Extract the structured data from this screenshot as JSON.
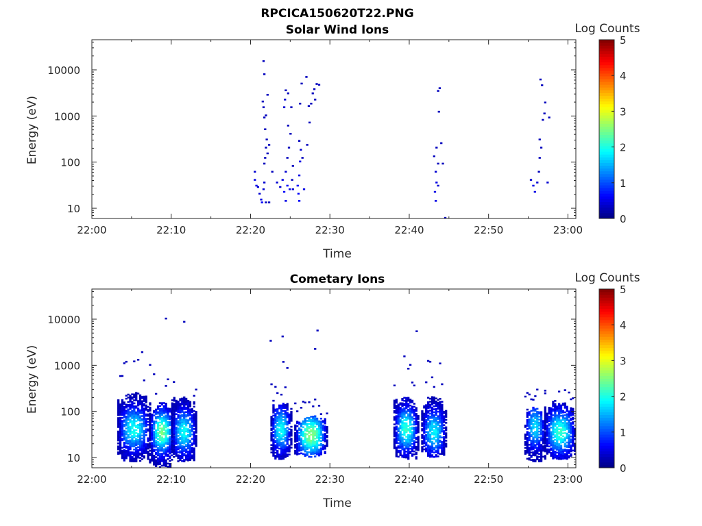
{
  "figure_title": "RPCICA150620T22.PNG",
  "colorbar": {
    "label": "Log Counts",
    "ticks": [
      0,
      1,
      2,
      3,
      4,
      5
    ],
    "scale": "jet"
  },
  "chart_data": [
    {
      "type": "heatmap",
      "title": "Solar Wind Ions",
      "xlabel": "Time",
      "ylabel": "Energy (eV)",
      "xticks": [
        "22:00",
        "22:10",
        "22:20",
        "22:30",
        "22:40",
        "22:50",
        "23:00"
      ],
      "xlim_minutes": [
        0,
        61
      ],
      "yticks": [
        {
          "value": 10,
          "label": "10"
        },
        {
          "value": 100,
          "label": "100"
        },
        {
          "value": 1000,
          "label": "1000"
        },
        {
          "value": 10000,
          "label": "10000"
        }
      ],
      "ylim": [
        6,
        45000
      ],
      "yscale": "log",
      "clim": [
        0,
        5
      ],
      "cells": [
        {
          "t": 20.4,
          "e": 60,
          "v": 0.4
        },
        {
          "t": 20.4,
          "e": 40,
          "v": 0.5
        },
        {
          "t": 20.6,
          "e": 30,
          "v": 0.5
        },
        {
          "t": 20.8,
          "e": 28,
          "v": 0.4
        },
        {
          "t": 21.0,
          "e": 20,
          "v": 0.4
        },
        {
          "t": 21.2,
          "e": 15,
          "v": 0.5
        },
        {
          "t": 21.3,
          "e": 13,
          "v": 0.6
        },
        {
          "t": 21.5,
          "e": 25,
          "v": 0.4
        },
        {
          "t": 21.6,
          "e": 35,
          "v": 0.4
        },
        {
          "t": 21.8,
          "e": 13,
          "v": 0.3
        },
        {
          "t": 21.6,
          "e": 90,
          "v": 0.3
        },
        {
          "t": 21.7,
          "e": 120,
          "v": 0.3
        },
        {
          "t": 21.8,
          "e": 200,
          "v": 0.3
        },
        {
          "t": 21.9,
          "e": 300,
          "v": 0.3
        },
        {
          "t": 21.7,
          "e": 500,
          "v": 0.3
        },
        {
          "t": 21.6,
          "e": 900,
          "v": 0.3
        },
        {
          "t": 21.5,
          "e": 1500,
          "v": 0.3
        },
        {
          "t": 21.4,
          "e": 2000,
          "v": 0.3
        },
        {
          "t": 21.8,
          "e": 1000,
          "v": 0.3
        },
        {
          "t": 22.0,
          "e": 2800,
          "v": 0.3
        },
        {
          "t": 21.6,
          "e": 7800,
          "v": 0.3
        },
        {
          "t": 21.5,
          "e": 15000,
          "v": 0.3
        },
        {
          "t": 22.2,
          "e": 230,
          "v": 0.3
        },
        {
          "t": 22.0,
          "e": 150,
          "v": 0.3
        },
        {
          "t": 22.2,
          "e": 13,
          "v": 0.3
        },
        {
          "t": 25.1,
          "e": 40,
          "v": 0.3
        },
        {
          "t": 25.2,
          "e": 25,
          "v": 0.4
        },
        {
          "t": 25.8,
          "e": 30,
          "v": 0.6
        },
        {
          "t": 25.9,
          "e": 20,
          "v": 0.6
        },
        {
          "t": 26.0,
          "e": 14,
          "v": 0.6
        },
        {
          "t": 26.0,
          "e": 50,
          "v": 0.5
        },
        {
          "t": 26.1,
          "e": 100,
          "v": 0.5
        },
        {
          "t": 26.2,
          "e": 180,
          "v": 0.4
        },
        {
          "t": 26.0,
          "e": 280,
          "v": 0.3
        },
        {
          "t": 26.4,
          "e": 120,
          "v": 0.3
        },
        {
          "t": 26.6,
          "e": 25,
          "v": 0.5
        },
        {
          "t": 26.1,
          "e": 1800,
          "v": 0.3
        },
        {
          "t": 26.3,
          "e": 4900,
          "v": 0.3
        },
        {
          "t": 26.9,
          "e": 6800,
          "v": 0.3
        },
        {
          "t": 27.0,
          "e": 230,
          "v": 0.3
        },
        {
          "t": 27.3,
          "e": 700,
          "v": 0.3
        },
        {
          "t": 22.6,
          "e": 60,
          "v": 0.3
        },
        {
          "t": 23.2,
          "e": 35,
          "v": 0.4
        },
        {
          "t": 23.6,
          "e": 28,
          "v": 0.4
        },
        {
          "t": 23.9,
          "e": 40,
          "v": 0.5
        },
        {
          "t": 24.1,
          "e": 22,
          "v": 0.6
        },
        {
          "t": 24.3,
          "e": 14,
          "v": 0.5
        },
        {
          "t": 24.5,
          "e": 30,
          "v": 0.6
        },
        {
          "t": 24.8,
          "e": 25,
          "v": 0.5
        },
        {
          "t": 24.3,
          "e": 60,
          "v": 0.4
        },
        {
          "t": 24.5,
          "e": 120,
          "v": 0.3
        },
        {
          "t": 24.7,
          "e": 200,
          "v": 0.3
        },
        {
          "t": 24.9,
          "e": 400,
          "v": 0.3
        },
        {
          "t": 24.6,
          "e": 600,
          "v": 0.3
        },
        {
          "t": 24.1,
          "e": 1500,
          "v": 0.4
        },
        {
          "t": 24.2,
          "e": 2200,
          "v": 0.4
        },
        {
          "t": 24.3,
          "e": 3500,
          "v": 0.3
        },
        {
          "t": 24.6,
          "e": 3000,
          "v": 0.3
        },
        {
          "t": 25.0,
          "e": 1500,
          "v": 0.3
        },
        {
          "t": 25.2,
          "e": 80,
          "v": 0.3
        },
        {
          "t": 27.2,
          "e": 1600,
          "v": 0.3
        },
        {
          "t": 27.5,
          "e": 1800,
          "v": 0.3
        },
        {
          "t": 27.7,
          "e": 3000,
          "v": 0.3
        },
        {
          "t": 27.9,
          "e": 3700,
          "v": 0.3
        },
        {
          "t": 28.0,
          "e": 2200,
          "v": 0.3
        },
        {
          "t": 28.2,
          "e": 4800,
          "v": 0.3
        },
        {
          "t": 28.5,
          "e": 4600,
          "v": 0.3
        },
        {
          "t": 43.0,
          "e": 130,
          "v": 0.3
        },
        {
          "t": 43.2,
          "e": 60,
          "v": 0.4
        },
        {
          "t": 43.3,
          "e": 35,
          "v": 0.5
        },
        {
          "t": 43.1,
          "e": 22,
          "v": 0.5
        },
        {
          "t": 43.2,
          "e": 14,
          "v": 0.5
        },
        {
          "t": 43.5,
          "e": 30,
          "v": 0.4
        },
        {
          "t": 43.5,
          "e": 90,
          "v": 0.3
        },
        {
          "t": 43.3,
          "e": 200,
          "v": 0.3
        },
        {
          "t": 43.6,
          "e": 1200,
          "v": 0.3
        },
        {
          "t": 43.5,
          "e": 3400,
          "v": 0.3
        },
        {
          "t": 43.7,
          "e": 3900,
          "v": 0.3
        },
        {
          "t": 43.9,
          "e": 250,
          "v": 0.3
        },
        {
          "t": 44.1,
          "e": 90,
          "v": 0.3
        },
        {
          "t": 44.4,
          "e": 6,
          "v": 0.3
        },
        {
          "t": 55.2,
          "e": 40,
          "v": 0.4
        },
        {
          "t": 55.5,
          "e": 30,
          "v": 0.5
        },
        {
          "t": 55.7,
          "e": 22,
          "v": 0.5
        },
        {
          "t": 56.0,
          "e": 35,
          "v": 0.4
        },
        {
          "t": 56.2,
          "e": 60,
          "v": 0.3
        },
        {
          "t": 56.3,
          "e": 120,
          "v": 0.3
        },
        {
          "t": 56.5,
          "e": 200,
          "v": 0.3
        },
        {
          "t": 56.3,
          "e": 300,
          "v": 0.3
        },
        {
          "t": 56.7,
          "e": 800,
          "v": 0.3
        },
        {
          "t": 56.9,
          "e": 1100,
          "v": 0.3
        },
        {
          "t": 57.0,
          "e": 1900,
          "v": 0.3
        },
        {
          "t": 56.6,
          "e": 4500,
          "v": 0.3
        },
        {
          "t": 56.4,
          "e": 6000,
          "v": 0.3
        },
        {
          "t": 57.5,
          "e": 900,
          "v": 0.3
        },
        {
          "t": 57.3,
          "e": 35,
          "v": 0.4
        }
      ]
    },
    {
      "type": "heatmap",
      "title": "Cometary Ions",
      "xlabel": "Time",
      "ylabel": "Energy (eV)",
      "xticks": [
        "22:00",
        "22:10",
        "22:20",
        "22:30",
        "22:40",
        "22:50",
        "23:00"
      ],
      "xlim_minutes": [
        0,
        61
      ],
      "yticks": [
        {
          "value": 10,
          "label": "10"
        },
        {
          "value": 100,
          "label": "100"
        },
        {
          "value": 1000,
          "label": "1000"
        },
        {
          "value": 10000,
          "label": "10000"
        }
      ],
      "ylim": [
        6,
        45000
      ],
      "yscale": "log",
      "clim": [
        0,
        5
      ],
      "bursts": [
        {
          "t0": 3.2,
          "t1": 7.2,
          "emin": 8,
          "peak_e": 40,
          "emax": 250,
          "peak_v": 1.8,
          "tail_e": 2200
        },
        {
          "t0": 7.2,
          "t1": 10.2,
          "emin": 6,
          "peak_e": 35,
          "emax": 150,
          "peak_v": 2.3,
          "tail_e": 700
        },
        {
          "t0": 10.0,
          "t1": 13.0,
          "emin": 8,
          "peak_e": 35,
          "emax": 200,
          "peak_v": 1.8,
          "tail_e": 550
        },
        {
          "t0": 22.5,
          "t1": 25.0,
          "emin": 9,
          "peak_e": 40,
          "emax": 150,
          "peak_v": 1.8,
          "tail_e": 1300
        },
        {
          "t0": 25.5,
          "t1": 29.5,
          "emin": 10,
          "peak_e": 30,
          "emax": 80,
          "peak_v": 2.4,
          "tail_e": 200
        },
        {
          "t0": 38.0,
          "t1": 41.0,
          "emin": 9,
          "peak_e": 40,
          "emax": 200,
          "peak_v": 2.0,
          "tail_e": 1700
        },
        {
          "t0": 41.5,
          "t1": 44.5,
          "emin": 10,
          "peak_e": 35,
          "emax": 200,
          "peak_v": 1.7,
          "tail_e": 1300
        },
        {
          "t0": 54.5,
          "t1": 57.0,
          "emin": 8,
          "peak_e": 45,
          "emax": 120,
          "peak_v": 1.6,
          "tail_e": 500
        },
        {
          "t0": 57.0,
          "t1": 60.8,
          "emin": 9,
          "peak_e": 35,
          "emax": 150,
          "peak_v": 2.0,
          "tail_e": 400
        }
      ],
      "isolated": [
        {
          "t": 9.2,
          "e": 10000,
          "v": 0.3
        },
        {
          "t": 11.5,
          "e": 8500,
          "v": 0.3
        },
        {
          "t": 22.4,
          "e": 3300,
          "v": 0.3
        },
        {
          "t": 23.9,
          "e": 4100,
          "v": 0.3
        },
        {
          "t": 28.0,
          "e": 2200,
          "v": 0.3
        },
        {
          "t": 28.3,
          "e": 5500,
          "v": 0.3
        },
        {
          "t": 40.8,
          "e": 5300,
          "v": 0.3
        }
      ]
    }
  ]
}
